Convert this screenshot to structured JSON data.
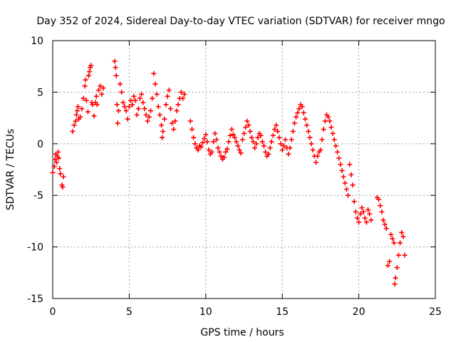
{
  "chart_data": {
    "type": "scatter",
    "title": "Day 352 of 2024, Sidereal Day-to-day VTEC variation (SDTVAR) for receiver mngo",
    "xlabel": "GPS time / hours",
    "ylabel": "SDTVAR / TECUs",
    "xlim": [
      0,
      25
    ],
    "ylim": [
      -15,
      10
    ],
    "x_ticks": [
      0,
      5,
      10,
      15,
      20,
      25
    ],
    "y_ticks": [
      -15,
      -10,
      -5,
      0,
      5,
      10
    ],
    "x_tick_labels": [
      "0",
      "5",
      "10",
      "15",
      "20",
      "25"
    ],
    "y_tick_labels": [
      "-15",
      "-10",
      "-5",
      "0",
      "5",
      "10"
    ],
    "grid": true,
    "marker": "+",
    "series": [
      {
        "name": "SDTVAR",
        "color": "#ff0000",
        "points": [
          [
            0.0,
            -2.8
          ],
          [
            0.1,
            -2.2
          ],
          [
            0.15,
            -1.5
          ],
          [
            0.2,
            -1.0
          ],
          [
            0.25,
            -1.8
          ],
          [
            0.3,
            -1.2
          ],
          [
            0.35,
            -0.8
          ],
          [
            0.4,
            -1.4
          ],
          [
            0.45,
            -2.4
          ],
          [
            0.5,
            -2.9
          ],
          [
            0.6,
            -4.0
          ],
          [
            0.65,
            -4.2
          ],
          [
            0.7,
            -3.2
          ],
          [
            1.3,
            1.2
          ],
          [
            1.4,
            1.8
          ],
          [
            1.5,
            2.2
          ],
          [
            1.55,
            2.8
          ],
          [
            1.6,
            3.2
          ],
          [
            1.65,
            3.6
          ],
          [
            1.7,
            2.4
          ],
          [
            1.8,
            2.6
          ],
          [
            1.9,
            3.4
          ],
          [
            2.0,
            4.4
          ],
          [
            2.1,
            5.6
          ],
          [
            2.15,
            6.2
          ],
          [
            2.2,
            4.2
          ],
          [
            2.3,
            3.1
          ],
          [
            2.35,
            6.6
          ],
          [
            2.4,
            7.0
          ],
          [
            2.45,
            7.4
          ],
          [
            2.5,
            7.6
          ],
          [
            2.55,
            4.0
          ],
          [
            2.6,
            3.8
          ],
          [
            2.7,
            2.7
          ],
          [
            2.8,
            4.0
          ],
          [
            2.85,
            4.6
          ],
          [
            2.9,
            3.8
          ],
          [
            3.0,
            5.2
          ],
          [
            3.1,
            5.6
          ],
          [
            3.2,
            4.8
          ],
          [
            3.3,
            5.4
          ],
          [
            4.05,
            8.0
          ],
          [
            4.1,
            7.4
          ],
          [
            4.15,
            6.6
          ],
          [
            4.2,
            3.8
          ],
          [
            4.25,
            2.0
          ],
          [
            4.3,
            3.2
          ],
          [
            4.4,
            5.8
          ],
          [
            4.5,
            5.0
          ],
          [
            4.6,
            4.0
          ],
          [
            4.7,
            3.6
          ],
          [
            4.8,
            3.2
          ],
          [
            4.9,
            2.4
          ],
          [
            5.0,
            3.6
          ],
          [
            5.1,
            4.2
          ],
          [
            5.2,
            3.8
          ],
          [
            5.3,
            4.6
          ],
          [
            5.4,
            4.2
          ],
          [
            5.5,
            2.8
          ],
          [
            5.6,
            3.4
          ],
          [
            5.7,
            4.4
          ],
          [
            5.8,
            4.8
          ],
          [
            5.9,
            4.0
          ],
          [
            6.0,
            3.4
          ],
          [
            6.1,
            2.8
          ],
          [
            6.2,
            2.2
          ],
          [
            6.3,
            2.6
          ],
          [
            6.4,
            3.2
          ],
          [
            6.5,
            4.4
          ],
          [
            6.6,
            6.8
          ],
          [
            6.7,
            5.8
          ],
          [
            6.8,
            4.8
          ],
          [
            6.9,
            3.6
          ],
          [
            7.0,
            2.8
          ],
          [
            7.1,
            1.8
          ],
          [
            7.15,
            0.6
          ],
          [
            7.2,
            1.2
          ],
          [
            7.3,
            2.4
          ],
          [
            7.4,
            3.8
          ],
          [
            7.5,
            4.6
          ],
          [
            7.6,
            5.2
          ],
          [
            7.7,
            3.4
          ],
          [
            7.8,
            2.0
          ],
          [
            7.9,
            1.4
          ],
          [
            8.0,
            2.2
          ],
          [
            8.1,
            3.2
          ],
          [
            8.2,
            3.8
          ],
          [
            8.3,
            4.4
          ],
          [
            8.4,
            5.0
          ],
          [
            8.5,
            4.4
          ],
          [
            8.6,
            4.8
          ],
          [
            9.0,
            2.2
          ],
          [
            9.1,
            1.4
          ],
          [
            9.2,
            0.6
          ],
          [
            9.3,
            0.0
          ],
          [
            9.4,
            -0.4
          ],
          [
            9.5,
            -0.6
          ],
          [
            9.6,
            -0.2
          ],
          [
            9.7,
            -0.3
          ],
          [
            9.8,
            0.1
          ],
          [
            9.9,
            0.5
          ],
          [
            10.0,
            0.9
          ],
          [
            10.1,
            0.2
          ],
          [
            10.2,
            -0.6
          ],
          [
            10.3,
            -1.0
          ],
          [
            10.4,
            -0.8
          ],
          [
            10.5,
            0.2
          ],
          [
            10.6,
            1.0
          ],
          [
            10.7,
            0.4
          ],
          [
            10.8,
            -0.4
          ],
          [
            10.9,
            -0.8
          ],
          [
            11.0,
            -1.2
          ],
          [
            11.1,
            -1.5
          ],
          [
            11.2,
            -1.3
          ],
          [
            11.3,
            -0.8
          ],
          [
            11.4,
            -0.5
          ],
          [
            11.5,
            0.2
          ],
          [
            11.6,
            0.8
          ],
          [
            11.7,
            1.4
          ],
          [
            11.8,
            0.9
          ],
          [
            11.9,
            0.6
          ],
          [
            12.0,
            0.2
          ],
          [
            12.1,
            -0.2
          ],
          [
            12.2,
            -0.6
          ],
          [
            12.3,
            -0.9
          ],
          [
            12.4,
            0.4
          ],
          [
            12.5,
            1.0
          ],
          [
            12.6,
            1.6
          ],
          [
            12.7,
            2.2
          ],
          [
            12.8,
            1.8
          ],
          [
            12.9,
            1.2
          ],
          [
            13.0,
            0.6
          ],
          [
            13.1,
            0.2
          ],
          [
            13.2,
            -0.4
          ],
          [
            13.3,
            0.0
          ],
          [
            13.4,
            0.6
          ],
          [
            13.5,
            1.0
          ],
          [
            13.6,
            0.8
          ],
          [
            13.7,
            0.2
          ],
          [
            13.8,
            -0.2
          ],
          [
            13.9,
            -0.8
          ],
          [
            14.0,
            -1.2
          ],
          [
            14.1,
            -1.0
          ],
          [
            14.2,
            -0.4
          ],
          [
            14.3,
            0.2
          ],
          [
            14.4,
            0.8
          ],
          [
            14.5,
            1.4
          ],
          [
            14.6,
            1.8
          ],
          [
            14.7,
            1.2
          ],
          [
            14.8,
            0.6
          ],
          [
            14.9,
            0.0
          ],
          [
            15.0,
            -0.6
          ],
          [
            15.1,
            -0.2
          ],
          [
            15.2,
            0.4
          ],
          [
            15.3,
            -0.4
          ],
          [
            15.4,
            -1.0
          ],
          [
            15.5,
            -0.4
          ],
          [
            15.6,
            0.4
          ],
          [
            15.7,
            1.2
          ],
          [
            15.8,
            2.0
          ],
          [
            15.9,
            2.6
          ],
          [
            16.0,
            3.0
          ],
          [
            16.1,
            3.4
          ],
          [
            16.2,
            3.8
          ],
          [
            16.3,
            3.6
          ],
          [
            16.4,
            3.0
          ],
          [
            16.5,
            2.4
          ],
          [
            16.6,
            1.8
          ],
          [
            16.7,
            1.2
          ],
          [
            16.8,
            0.6
          ],
          [
            16.9,
            0.0
          ],
          [
            17.0,
            -0.6
          ],
          [
            17.1,
            -1.2
          ],
          [
            17.2,
            -1.8
          ],
          [
            17.3,
            -1.2
          ],
          [
            17.4,
            -0.8
          ],
          [
            17.5,
            -0.6
          ],
          [
            17.6,
            0.4
          ],
          [
            17.7,
            1.4
          ],
          [
            17.8,
            2.2
          ],
          [
            17.9,
            2.8
          ],
          [
            18.0,
            2.6
          ],
          [
            18.1,
            2.2
          ],
          [
            18.2,
            1.6
          ],
          [
            18.3,
            1.0
          ],
          [
            18.4,
            0.4
          ],
          [
            18.5,
            -0.2
          ],
          [
            18.6,
            -0.8
          ],
          [
            18.7,
            -1.4
          ],
          [
            18.8,
            -2.0
          ],
          [
            18.9,
            -2.6
          ],
          [
            19.0,
            -3.2
          ],
          [
            19.1,
            -3.8
          ],
          [
            19.2,
            -4.4
          ],
          [
            19.3,
            -5.0
          ],
          [
            19.4,
            -2.0
          ],
          [
            19.5,
            -3.0
          ],
          [
            19.6,
            -4.0
          ],
          [
            19.7,
            -5.6
          ],
          [
            19.8,
            -6.6
          ],
          [
            19.9,
            -7.2
          ],
          [
            20.0,
            -7.6
          ],
          [
            20.1,
            -6.8
          ],
          [
            20.2,
            -6.2
          ],
          [
            20.3,
            -6.6
          ],
          [
            20.4,
            -7.2
          ],
          [
            20.5,
            -7.6
          ],
          [
            20.6,
            -6.4
          ],
          [
            20.7,
            -6.8
          ],
          [
            20.8,
            -7.4
          ],
          [
            21.2,
            -5.2
          ],
          [
            21.3,
            -5.4
          ],
          [
            21.4,
            -6.0
          ],
          [
            21.5,
            -6.6
          ],
          [
            21.6,
            -7.4
          ],
          [
            21.7,
            -7.8
          ],
          [
            21.8,
            -8.2
          ],
          [
            21.9,
            -11.8
          ],
          [
            22.0,
            -11.4
          ],
          [
            22.1,
            -8.8
          ],
          [
            22.2,
            -9.2
          ],
          [
            22.3,
            -9.6
          ],
          [
            22.35,
            -13.6
          ],
          [
            22.4,
            -13.0
          ],
          [
            22.5,
            -12.0
          ],
          [
            22.6,
            -10.8
          ],
          [
            22.7,
            -9.6
          ],
          [
            22.8,
            -8.6
          ],
          [
            22.9,
            -9.0
          ],
          [
            23.0,
            -10.8
          ]
        ]
      }
    ]
  }
}
